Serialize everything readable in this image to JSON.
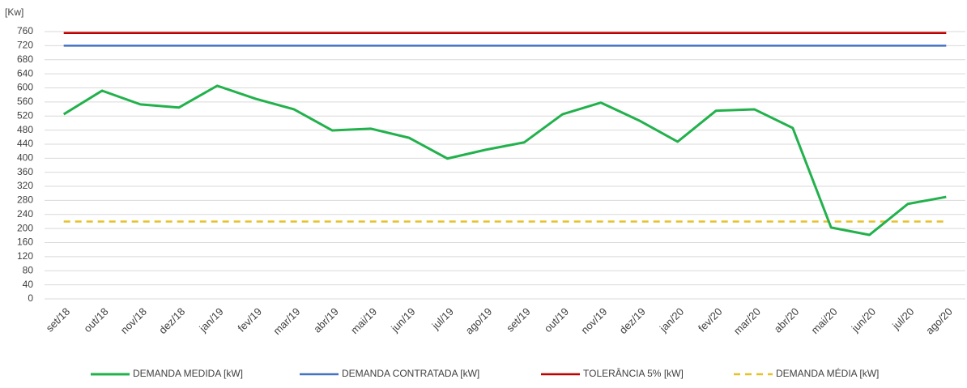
{
  "chart_data": {
    "type": "line",
    "y_label": "[Kw]",
    "categories": [
      "set/18",
      "out/18",
      "nov/18",
      "dez/18",
      "jan/19",
      "fev/19",
      "mar/19",
      "abr/19",
      "mai/19",
      "jun/19",
      "jul/19",
      "ago/19",
      "set/19",
      "out/19",
      "nov/19",
      "dez/19",
      "jan/20",
      "fev/20",
      "mar/20",
      "abr/20",
      "mai/20",
      "jun/20",
      "jul/20",
      "ago/20"
    ],
    "series": [
      {
        "name": "DEMANDA MEDIDA [kW]",
        "color": "#22b14c",
        "dashed": false,
        "values": [
          525,
          592,
          553,
          544,
          606,
          569,
          539,
          479,
          484,
          458,
          399,
          424,
          445,
          525,
          558,
          507,
          447,
          535,
          539,
          486,
          203,
          182,
          270,
          290
        ]
      },
      {
        "name": "DEMANDA CONTRATADA [kW]",
        "color": "#4472c4",
        "dashed": false,
        "values": [
          720,
          720,
          720,
          720,
          720,
          720,
          720,
          720,
          720,
          720,
          720,
          720,
          720,
          720,
          720,
          720,
          720,
          720,
          720,
          720,
          720,
          720,
          720,
          720
        ]
      },
      {
        "name": "TOLERÂNCIA 5% [kW]",
        "color": "#c00000",
        "dashed": false,
        "values": [
          756,
          756,
          756,
          756,
          756,
          756,
          756,
          756,
          756,
          756,
          756,
          756,
          756,
          756,
          756,
          756,
          756,
          756,
          756,
          756,
          756,
          756,
          756,
          756
        ]
      },
      {
        "name": "DEMANDA MÉDIA [kW]",
        "color": "#e6c229",
        "dashed": true,
        "values": [
          220,
          220,
          220,
          220,
          220,
          220,
          220,
          220,
          220,
          220,
          220,
          220,
          220,
          220,
          220,
          220,
          220,
          220,
          220,
          220,
          220,
          220,
          220,
          220
        ]
      }
    ],
    "ylim": [
      0,
      760
    ],
    "yticks": [
      0,
      40,
      80,
      120,
      160,
      200,
      240,
      280,
      320,
      360,
      400,
      440,
      480,
      520,
      560,
      600,
      640,
      680,
      720,
      760
    ],
    "grid": true
  }
}
